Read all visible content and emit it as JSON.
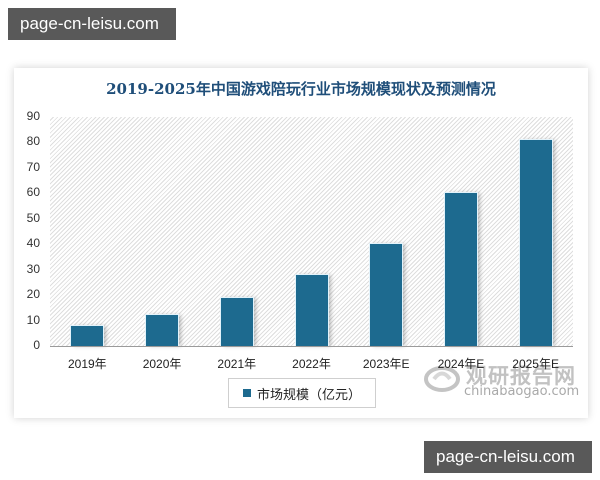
{
  "watermarks": {
    "top": "page-cn-leisu.com",
    "bottom": "page-cn-leisu.com"
  },
  "chart_data": {
    "type": "bar",
    "title": "2019-2025年中国游戏陪玩行业市场规模现状及预测情况",
    "categories": [
      "2019年",
      "2020年",
      "2021年",
      "2022年",
      "2023年E",
      "2024年E",
      "2025年E"
    ],
    "series": [
      {
        "name": "市场规模（亿元）",
        "values": [
          8,
          12,
          19,
          28,
          40,
          60,
          81
        ],
        "color": "#1d6a8f"
      }
    ],
    "xlabel": "",
    "ylabel": "",
    "ylim": [
      0,
      90
    ],
    "yticks": [
      0,
      10,
      20,
      30,
      40,
      50,
      60,
      70,
      80,
      90
    ],
    "grid": false,
    "legend_position": "bottom",
    "background": "diagonal-hatch"
  },
  "legend": {
    "label": "市场规模（亿元）"
  },
  "source_logo": {
    "cn": "观研报告网",
    "en": "chinabaogao.com"
  }
}
